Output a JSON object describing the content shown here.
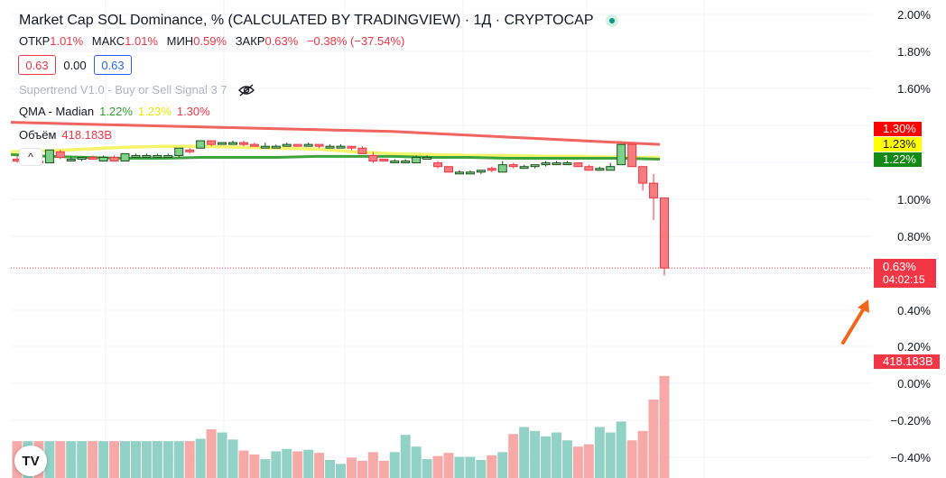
{
  "header": {
    "title": "Market Cap SOL Dominance, % (CALCULATED BY TRADINGVIEW) · 1Д · CRYPTOCAP"
  },
  "ohlc": {
    "open_label": "ОТКР",
    "open": "1.01%",
    "high_label": "МАКС",
    "high": "1.01%",
    "low_label": "МИН",
    "low": "0.59%",
    "close_label": "ЗАКР",
    "close": "0.63%",
    "change": "−0.38% (−37.54%)"
  },
  "price_boxes": {
    "bid": "0.63",
    "spread": "0.00",
    "ask": "0.63"
  },
  "indicators": {
    "supertrend": "Supertrend V1.0 - Buy or Sell Signal 3 7",
    "qma": {
      "label": "QMA - Madian",
      "green": "1.22%",
      "yellow": "1.23%",
      "red": "1.30%"
    },
    "volume": {
      "label": "Объём",
      "value": "418.183B"
    }
  },
  "collapse_glyph": "^",
  "price_axis": [
    "2.00%",
    "1.80%",
    "1.60%",
    "1.00%",
    "0.80%",
    "0.40%",
    "0.20%",
    "0.00%",
    "−0.20%",
    "−0.40%"
  ],
  "tags": {
    "red": "1.30%",
    "yellow": "1.23%",
    "green": "1.22%",
    "current": "0.63%",
    "countdown": "04:02:15",
    "volume": "418.183B"
  },
  "logo_text": "TV",
  "colors": {
    "up": "#7fd18a",
    "up_border": "#1c4d1c",
    "down": "#f77c80",
    "down_border": "#f23645",
    "vol_up": "#92d1c6",
    "vol_down": "#f7a9a7",
    "qma_red": "#f2645f",
    "qma_yellow": "#f5f56a",
    "qma_green": "#3da33d",
    "arrow": "#f2661a"
  },
  "chart_data": {
    "type": "candlestick",
    "ylim": [
      -0.4,
      2.0
    ],
    "candles": [
      {
        "o": 1.22,
        "h": 1.24,
        "l": 1.2,
        "c": 1.21
      },
      {
        "o": 1.21,
        "h": 1.22,
        "l": 1.2,
        "c": 1.21
      },
      {
        "o": 1.21,
        "h": 1.22,
        "l": 1.2,
        "c": 1.2
      },
      {
        "o": 1.2,
        "h": 1.27,
        "l": 1.2,
        "c": 1.27
      },
      {
        "o": 1.26,
        "h": 1.27,
        "l": 1.22,
        "c": 1.23
      },
      {
        "o": 1.22,
        "h": 1.23,
        "l": 1.21,
        "c": 1.22
      },
      {
        "o": 1.22,
        "h": 1.23,
        "l": 1.21,
        "c": 1.23
      },
      {
        "o": 1.23,
        "h": 1.24,
        "l": 1.22,
        "c": 1.22
      },
      {
        "o": 1.21,
        "h": 1.24,
        "l": 1.21,
        "c": 1.23
      },
      {
        "o": 1.23,
        "h": 1.24,
        "l": 1.21,
        "c": 1.21
      },
      {
        "o": 1.21,
        "h": 1.25,
        "l": 1.21,
        "c": 1.25
      },
      {
        "o": 1.24,
        "h": 1.25,
        "l": 1.23,
        "c": 1.24
      },
      {
        "o": 1.24,
        "h": 1.25,
        "l": 1.23,
        "c": 1.24
      },
      {
        "o": 1.24,
        "h": 1.25,
        "l": 1.23,
        "c": 1.24
      },
      {
        "o": 1.24,
        "h": 1.25,
        "l": 1.23,
        "c": 1.24
      },
      {
        "o": 1.24,
        "h": 1.28,
        "l": 1.23,
        "c": 1.28
      },
      {
        "o": 1.27,
        "h": 1.28,
        "l": 1.25,
        "c": 1.26
      },
      {
        "o": 1.28,
        "h": 1.32,
        "l": 1.28,
        "c": 1.32
      },
      {
        "o": 1.32,
        "h": 1.32,
        "l": 1.29,
        "c": 1.3
      },
      {
        "o": 1.31,
        "h": 1.31,
        "l": 1.3,
        "c": 1.31
      },
      {
        "o": 1.3,
        "h": 1.32,
        "l": 1.3,
        "c": 1.31
      },
      {
        "o": 1.31,
        "h": 1.32,
        "l": 1.29,
        "c": 1.3
      },
      {
        "o": 1.3,
        "h": 1.31,
        "l": 1.29,
        "c": 1.29
      },
      {
        "o": 1.29,
        "h": 1.31,
        "l": 1.28,
        "c": 1.29
      },
      {
        "o": 1.29,
        "h": 1.3,
        "l": 1.28,
        "c": 1.29
      },
      {
        "o": 1.29,
        "h": 1.31,
        "l": 1.29,
        "c": 1.3
      },
      {
        "o": 1.3,
        "h": 1.3,
        "l": 1.29,
        "c": 1.29
      },
      {
        "o": 1.29,
        "h": 1.31,
        "l": 1.29,
        "c": 1.3
      },
      {
        "o": 1.3,
        "h": 1.3,
        "l": 1.28,
        "c": 1.29
      },
      {
        "o": 1.29,
        "h": 1.3,
        "l": 1.28,
        "c": 1.29
      },
      {
        "o": 1.29,
        "h": 1.3,
        "l": 1.28,
        "c": 1.29
      },
      {
        "o": 1.29,
        "h": 1.29,
        "l": 1.27,
        "c": 1.28
      },
      {
        "o": 1.28,
        "h": 1.29,
        "l": 1.25,
        "c": 1.25
      },
      {
        "o": 1.24,
        "h": 1.26,
        "l": 1.2,
        "c": 1.21
      },
      {
        "o": 1.22,
        "h": 1.22,
        "l": 1.21,
        "c": 1.21
      },
      {
        "o": 1.21,
        "h": 1.22,
        "l": 1.2,
        "c": 1.21
      },
      {
        "o": 1.21,
        "h": 1.22,
        "l": 1.2,
        "c": 1.21
      },
      {
        "o": 1.2,
        "h": 1.24,
        "l": 1.2,
        "c": 1.23
      },
      {
        "o": 1.23,
        "h": 1.24,
        "l": 1.22,
        "c": 1.23
      },
      {
        "o": 1.2,
        "h": 1.21,
        "l": 1.17,
        "c": 1.18
      },
      {
        "o": 1.18,
        "h": 1.18,
        "l": 1.15,
        "c": 1.15
      },
      {
        "o": 1.15,
        "h": 1.16,
        "l": 1.14,
        "c": 1.15
      },
      {
        "o": 1.15,
        "h": 1.16,
        "l": 1.14,
        "c": 1.15
      },
      {
        "o": 1.15,
        "h": 1.16,
        "l": 1.14,
        "c": 1.16
      },
      {
        "o": 1.17,
        "h": 1.18,
        "l": 1.15,
        "c": 1.16
      },
      {
        "o": 1.15,
        "h": 1.21,
        "l": 1.15,
        "c": 1.19
      },
      {
        "o": 1.19,
        "h": 1.2,
        "l": 1.17,
        "c": 1.18
      },
      {
        "o": 1.18,
        "h": 1.19,
        "l": 1.17,
        "c": 1.18
      },
      {
        "o": 1.18,
        "h": 1.19,
        "l": 1.17,
        "c": 1.19
      },
      {
        "o": 1.19,
        "h": 1.21,
        "l": 1.18,
        "c": 1.2
      },
      {
        "o": 1.2,
        "h": 1.21,
        "l": 1.19,
        "c": 1.2
      },
      {
        "o": 1.2,
        "h": 1.21,
        "l": 1.19,
        "c": 1.2
      },
      {
        "o": 1.2,
        "h": 1.2,
        "l": 1.18,
        "c": 1.18
      },
      {
        "o": 1.18,
        "h": 1.19,
        "l": 1.16,
        "c": 1.16
      },
      {
        "o": 1.16,
        "h": 1.18,
        "l": 1.16,
        "c": 1.17
      },
      {
        "o": 1.16,
        "h": 1.2,
        "l": 1.16,
        "c": 1.18
      },
      {
        "o": 1.19,
        "h": 1.3,
        "l": 1.19,
        "c": 1.3
      },
      {
        "o": 1.3,
        "h": 1.3,
        "l": 1.18,
        "c": 1.18
      },
      {
        "o": 1.18,
        "h": 1.18,
        "l": 1.05,
        "c": 1.09
      },
      {
        "o": 1.09,
        "h": 1.14,
        "l": 0.89,
        "c": 1.01
      },
      {
        "o": 1.01,
        "h": 1.01,
        "l": 0.59,
        "c": 0.63
      }
    ],
    "volume_rel": [
      0.47,
      0.47,
      0.47,
      0.47,
      0.47,
      0.47,
      0.47,
      0.47,
      0.47,
      0.47,
      0.47,
      0.47,
      0.47,
      0.47,
      0.47,
      0.47,
      0.47,
      0.5,
      0.62,
      0.58,
      0.49,
      0.35,
      0.3,
      0.24,
      0.34,
      0.37,
      0.34,
      0.36,
      0.32,
      0.23,
      0.18,
      0.26,
      0.22,
      0.33,
      0.22,
      0.33,
      0.55,
      0.4,
      0.24,
      0.28,
      0.32,
      0.27,
      0.27,
      0.23,
      0.29,
      0.33,
      0.56,
      0.65,
      0.6,
      0.53,
      0.58,
      0.48,
      0.4,
      0.43,
      0.65,
      0.58,
      0.72,
      0.48,
      0.6,
      1.0,
      1.3
    ],
    "series": [
      {
        "name": "QMA - Madian",
        "color": "red",
        "values_start": 1.42,
        "values_end": 1.3
      },
      {
        "name": "QMA - Madian",
        "color": "yellow",
        "values_start": 1.25,
        "values_end": 1.23
      },
      {
        "name": "QMA - Madian",
        "color": "green",
        "values_start": 1.23,
        "values_end": 1.22
      }
    ],
    "last_price_line": 0.63
  }
}
